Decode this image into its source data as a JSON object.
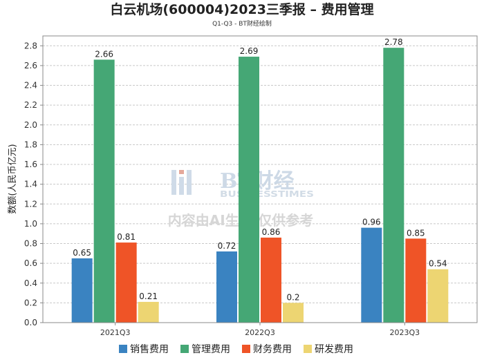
{
  "chart_data": {
    "type": "bar",
    "title": "白云机场(600004)2023三季报 – 费用管理",
    "subtitle": "Q1-Q3 - BT财经绘制",
    "xlabel": "",
    "ylabel": "数额(人民币亿元)",
    "ylim": [
      0,
      2.9
    ],
    "yticks": [
      0.0,
      0.2,
      0.4,
      0.6,
      0.8,
      1.0,
      1.2,
      1.4,
      1.6,
      1.8,
      2.0,
      2.2,
      2.4,
      2.6,
      2.8
    ],
    "grid": true,
    "legend_position": "bottom",
    "categories": [
      "2021Q3",
      "2022Q3",
      "2023Q3"
    ],
    "series": [
      {
        "name": "销售费用",
        "color": "#3a83c1",
        "values": [
          0.65,
          0.72,
          0.96
        ],
        "labels": [
          "0.65",
          "0.72",
          "0.96"
        ]
      },
      {
        "name": "管理费用",
        "color": "#45a775",
        "values": [
          2.66,
          2.69,
          2.78
        ],
        "labels": [
          "2.66",
          "2.69",
          "2.78"
        ]
      },
      {
        "name": "财务费用",
        "color": "#ef5427",
        "values": [
          0.81,
          0.86,
          0.85
        ],
        "labels": [
          "0.81",
          "0.86",
          "0.85"
        ]
      },
      {
        "name": "研发费用",
        "color": "#edd572",
        "values": [
          0.21,
          0.2,
          0.54
        ],
        "labels": [
          "0.21",
          "0.2",
          "0.54"
        ]
      }
    ]
  },
  "watermark": {
    "brand": "BT财经",
    "brand_en": "BUSINESSTIMES",
    "notice": "内容由AI生成,仅供参考"
  }
}
